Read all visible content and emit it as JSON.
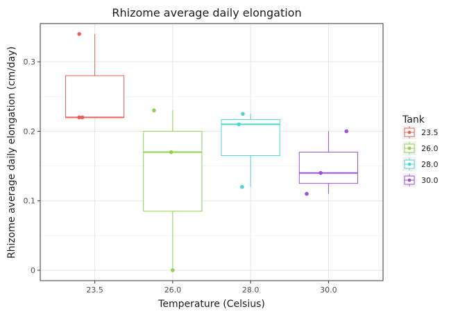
{
  "chart_data": {
    "type": "box",
    "title": "Rhizome average daily elongation",
    "xlabel": "Temperature (Celsius)",
    "ylabel": "Rhizome average daily elongation (cm/day)",
    "categories": [
      "23.5",
      "26.0",
      "28.0",
      "30.0"
    ],
    "ylim": [
      -0.015,
      0.355
    ],
    "yticks": [
      0,
      0.1,
      0.2,
      0.3
    ],
    "ytick_labels": [
      "0",
      "0.1",
      "0.2",
      "0.3"
    ],
    "grid": true,
    "legend": {
      "title": "Tank",
      "position": "right",
      "entries": [
        "23.5",
        "26.0",
        "28.0",
        "30.0"
      ]
    },
    "series": [
      {
        "name": "23.5",
        "color": "#E0635A",
        "box": {
          "min": 0.22,
          "q1": 0.22,
          "median": 0.22,
          "q3": 0.28,
          "max": 0.34
        },
        "points": [
          {
            "offset": -0.2,
            "y": 0.34
          },
          {
            "offset": -0.2,
            "y": 0.22
          },
          {
            "offset": -0.16,
            "y": 0.22
          }
        ]
      },
      {
        "name": "26.0",
        "color": "#8FD24F",
        "box": {
          "min": 0.0,
          "q1": 0.085,
          "median": 0.17,
          "q3": 0.2,
          "max": 0.23
        },
        "points": [
          {
            "offset": -0.24,
            "y": 0.23
          },
          {
            "offset": -0.02,
            "y": 0.17
          },
          {
            "offset": 0.0,
            "y": 0.0
          }
        ]
      },
      {
        "name": "28.0",
        "color": "#4DD3D3",
        "box": {
          "min": 0.12,
          "q1": 0.165,
          "median": 0.21,
          "q3": 0.217,
          "max": 0.225
        },
        "points": [
          {
            "offset": -0.1,
            "y": 0.225
          },
          {
            "offset": -0.15,
            "y": 0.21
          },
          {
            "offset": -0.11,
            "y": 0.12
          }
        ]
      },
      {
        "name": "30.0",
        "color": "#9E4FD8",
        "box": {
          "min": 0.11,
          "q1": 0.125,
          "median": 0.14,
          "q3": 0.17,
          "max": 0.2
        },
        "points": [
          {
            "offset": 0.23,
            "y": 0.2
          },
          {
            "offset": -0.1,
            "y": 0.14
          },
          {
            "offset": -0.28,
            "y": 0.11
          }
        ]
      }
    ]
  }
}
